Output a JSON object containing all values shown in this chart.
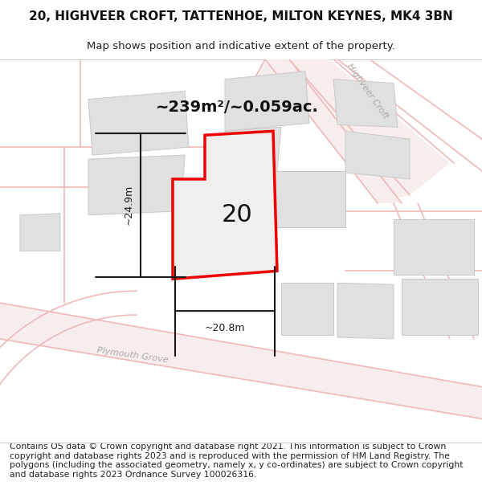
{
  "title": "20, HIGHVEER CROFT, TATTENHOE, MILTON KEYNES, MK4 3BN",
  "subtitle": "Map shows position and indicative extent of the property.",
  "area_text": "~239m²/~0.059ac.",
  "label_20": "20",
  "dim_width": "~20.8m",
  "dim_height": "~24.9m",
  "footer": "Contains OS data © Crown copyright and database right 2021. This information is subject to Crown copyright and database rights 2023 and is reproduced with the permission of HM Land Registry. The polygons (including the associated geometry, namely x, y co-ordinates) are subject to Crown copyright and database rights 2023 Ordnance Survey 100026316.",
  "bg_map": "#f2f0ee",
  "road_color": "#f0b8b8",
  "road_fill": "#f8eded",
  "building_color": "#e0e0e0",
  "building_edge": "#cccccc",
  "plot_fill": "#f0efee",
  "plot_edge": "#ee0000",
  "dim_color": "#1a1a1a",
  "street_label_color": "#aaaaaa",
  "title_fontsize": 11,
  "subtitle_fontsize": 9.5,
  "footer_fontsize": 7.8,
  "area_fontsize": 14,
  "label_fontsize": 22,
  "dim_fontsize": 9
}
